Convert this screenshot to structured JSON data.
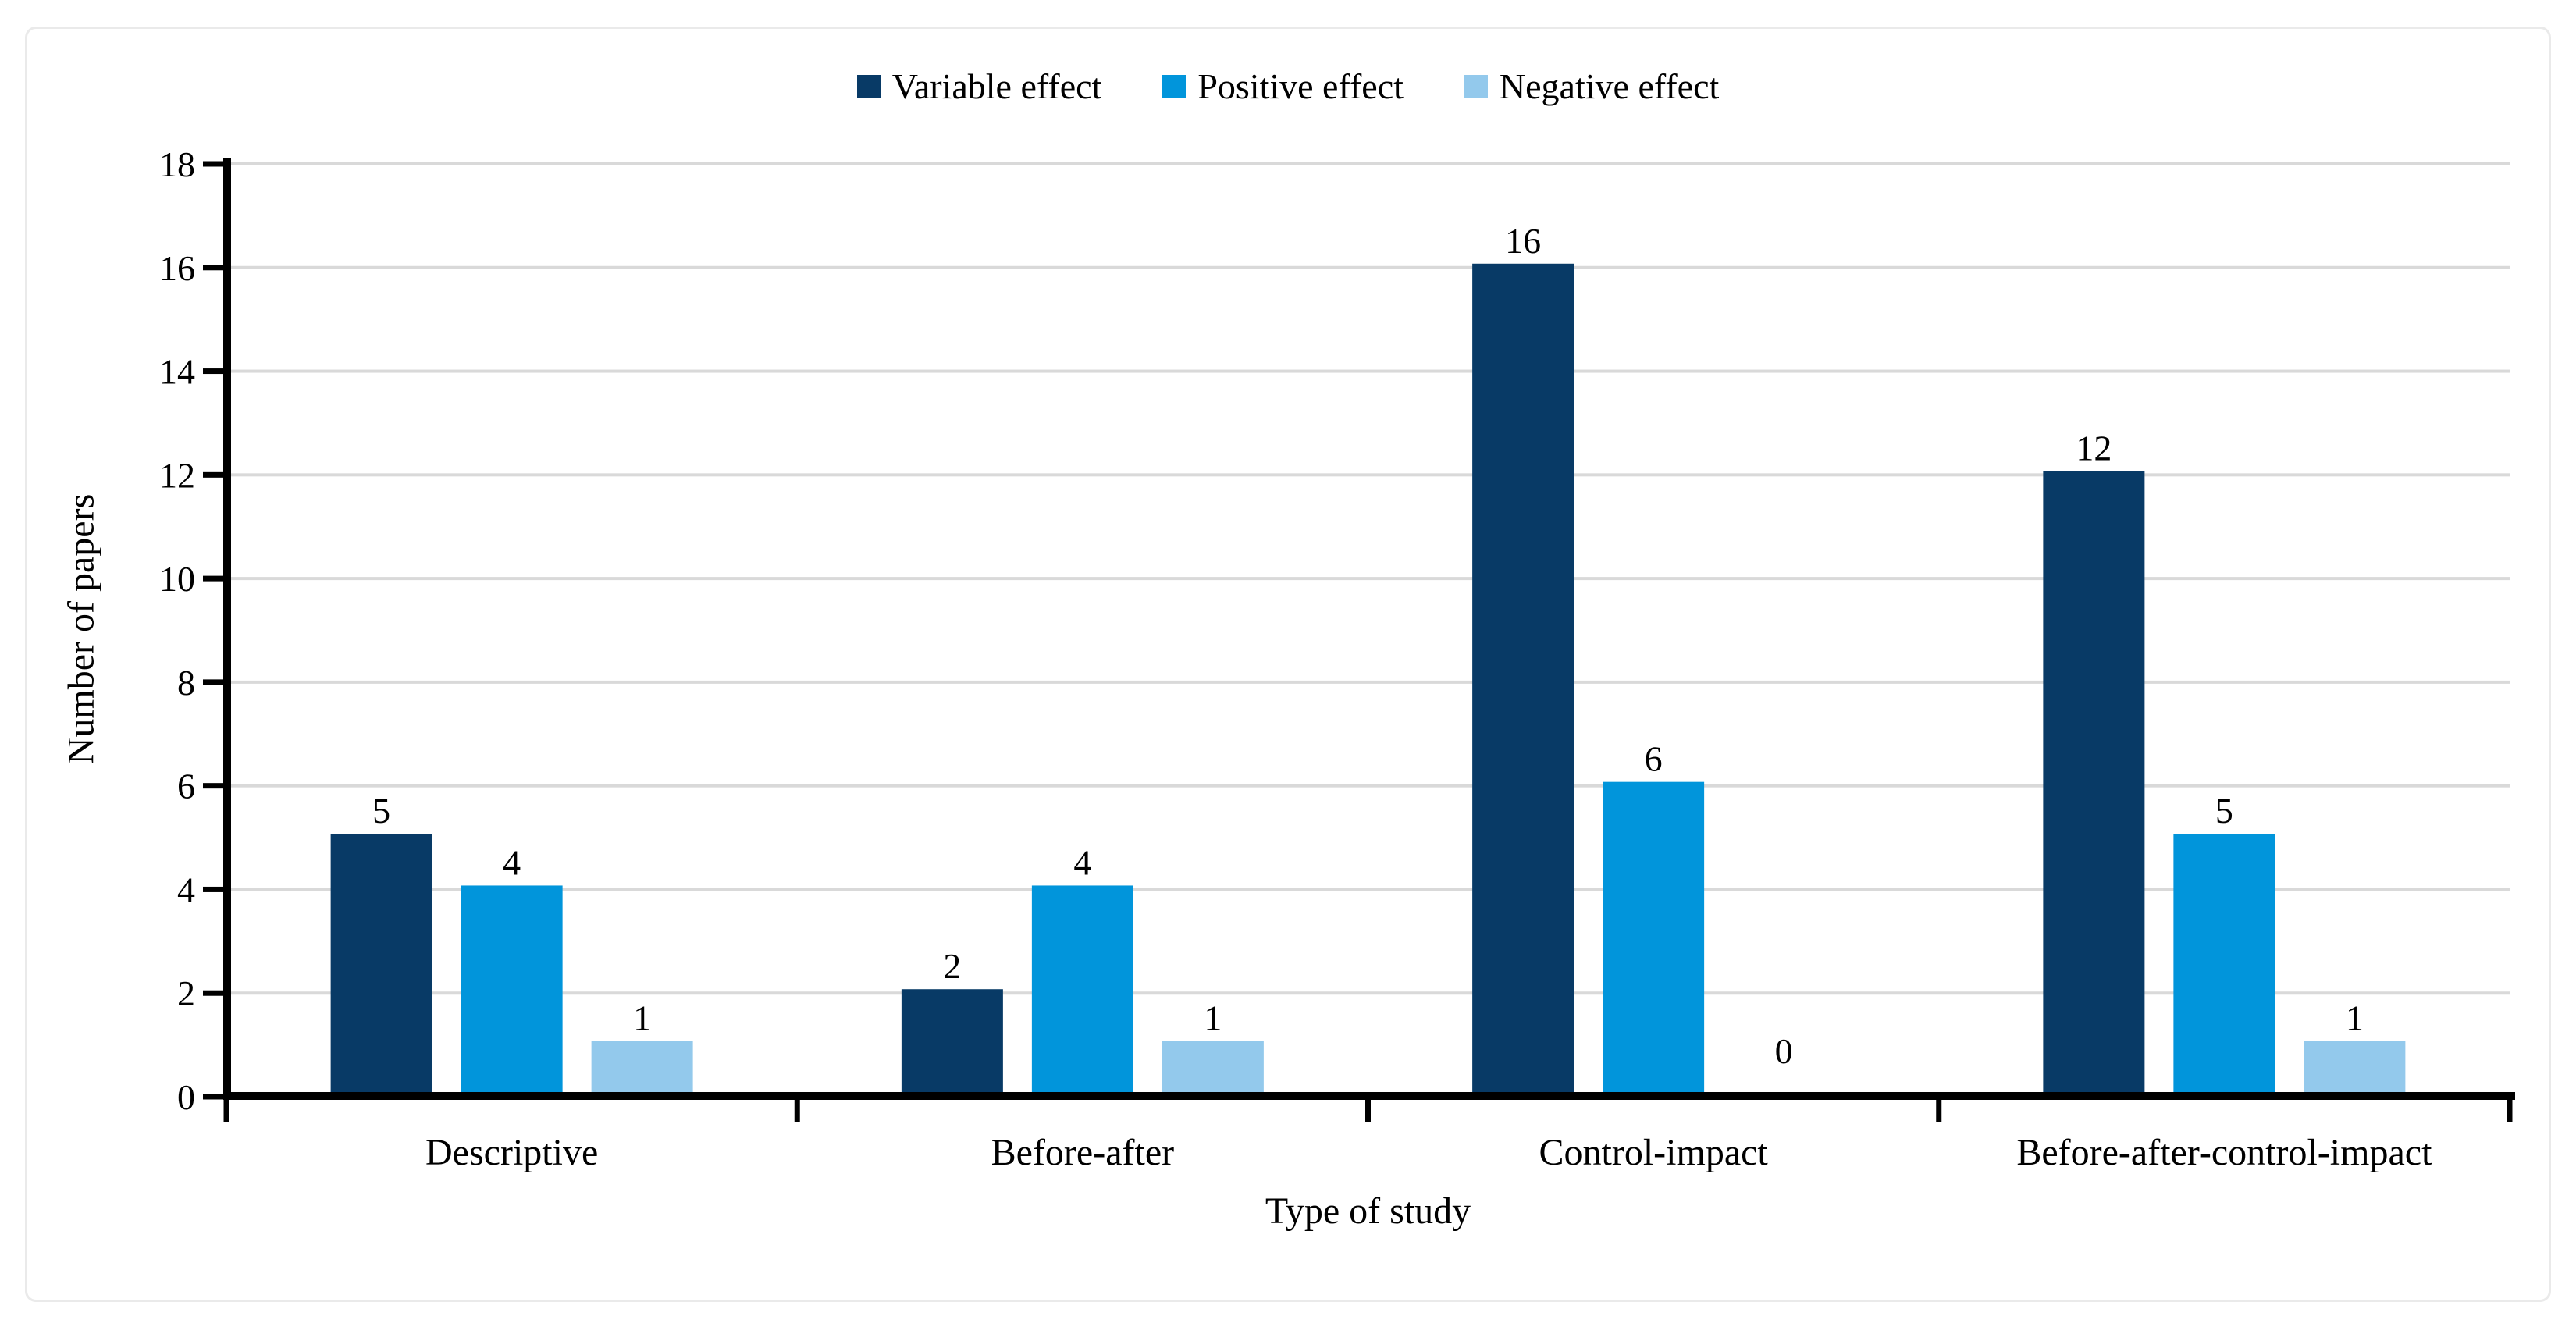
{
  "chart_data": {
    "type": "bar",
    "title": "",
    "categories": [
      "Descriptive",
      "Before-after",
      "Control-impact",
      "Before-after-control-impact"
    ],
    "series": [
      {
        "name": "Variable effect",
        "color": "#083A66",
        "values": [
          5,
          2,
          16,
          12
        ]
      },
      {
        "name": "Positive effect",
        "color": "#0195DB",
        "values": [
          4,
          4,
          6,
          5
        ]
      },
      {
        "name": "Negative effect",
        "color": "#93C9EC",
        "values": [
          1,
          1,
          0,
          1
        ]
      }
    ],
    "xlabel": "Type of study",
    "ylabel": "Number of papers",
    "ylim": [
      0,
      18
    ],
    "ytick_step": 2,
    "yticks": [
      0,
      2,
      4,
      6,
      8,
      10,
      12,
      14,
      16,
      18
    ],
    "grid": true,
    "legend_position": "top",
    "data_labels": true
  },
  "style": {
    "gridline_color": "#D9D9D9",
    "axis_color": "#000000",
    "text_color": "#000000",
    "card_border_color": "#EAEAEA",
    "background_color": "#FFFFFF"
  }
}
